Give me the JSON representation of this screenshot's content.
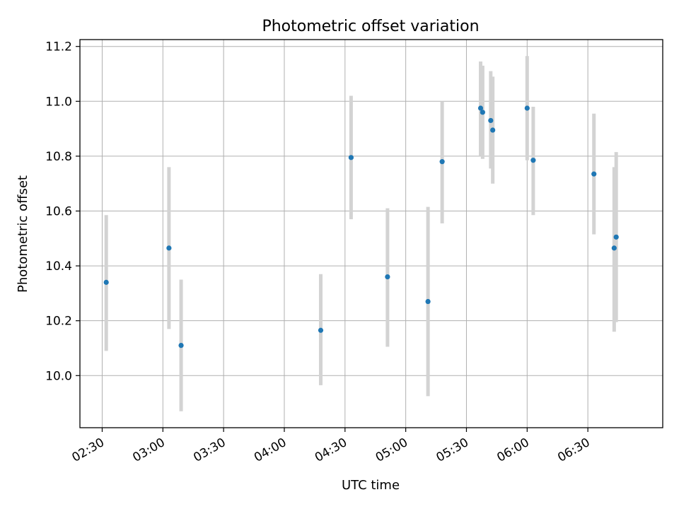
{
  "chart_data": {
    "type": "scatter",
    "title": "Photometric offset variation",
    "xlabel": "UTC time",
    "ylabel": "Photometric offset",
    "x_tick_labels": [
      "02:30",
      "03:00",
      "03:30",
      "04:00",
      "04:30",
      "05:00",
      "05:30",
      "06:00",
      "06:30"
    ],
    "y_ticks": [
      10.0,
      10.2,
      10.4,
      10.6,
      10.8,
      11.0,
      11.2
    ],
    "y_tick_labels": [
      "10.0",
      "10.2",
      "10.4",
      "10.6",
      "10.8",
      "11.0",
      "11.2"
    ],
    "xlim": [
      "02:19",
      "07:07"
    ],
    "ylim": [
      9.81,
      11.225
    ],
    "grid": true,
    "colors": {
      "marker": "#1f77b4",
      "errorbar": "#d3d3d3",
      "grid": "#b0b0b0",
      "axes": "#000000"
    },
    "points": [
      {
        "x": "02:32",
        "y": 10.34,
        "y_low": 10.09,
        "y_high": 10.585
      },
      {
        "x": "03:03",
        "y": 10.465,
        "y_low": 10.17,
        "y_high": 10.76
      },
      {
        "x": "03:09",
        "y": 10.11,
        "y_low": 9.87,
        "y_high": 10.35
      },
      {
        "x": "04:18",
        "y": 10.165,
        "y_low": 9.965,
        "y_high": 10.37
      },
      {
        "x": "04:33",
        "y": 10.795,
        "y_low": 10.57,
        "y_high": 11.02
      },
      {
        "x": "04:51",
        "y": 10.36,
        "y_low": 10.105,
        "y_high": 10.61
      },
      {
        "x": "05:11",
        "y": 10.27,
        "y_low": 9.925,
        "y_high": 10.615
      },
      {
        "x": "05:18",
        "y": 10.78,
        "y_low": 10.555,
        "y_high": 11.0
      },
      {
        "x": "05:37",
        "y": 10.975,
        "y_low": 10.8,
        "y_high": 11.145
      },
      {
        "x": "05:38",
        "y": 10.96,
        "y_low": 10.79,
        "y_high": 11.13
      },
      {
        "x": "05:42",
        "y": 10.93,
        "y_low": 10.755,
        "y_high": 11.11
      },
      {
        "x": "05:43",
        "y": 10.895,
        "y_low": 10.7,
        "y_high": 11.09
      },
      {
        "x": "06:00",
        "y": 10.975,
        "y_low": 10.785,
        "y_high": 11.165
      },
      {
        "x": "06:03",
        "y": 10.785,
        "y_low": 10.585,
        "y_high": 10.98
      },
      {
        "x": "06:33",
        "y": 10.735,
        "y_low": 10.515,
        "y_high": 10.955
      },
      {
        "x": "06:43",
        "y": 10.465,
        "y_low": 10.16,
        "y_high": 10.76
      },
      {
        "x": "06:44",
        "y": 10.505,
        "y_low": 10.195,
        "y_high": 10.815
      }
    ]
  }
}
